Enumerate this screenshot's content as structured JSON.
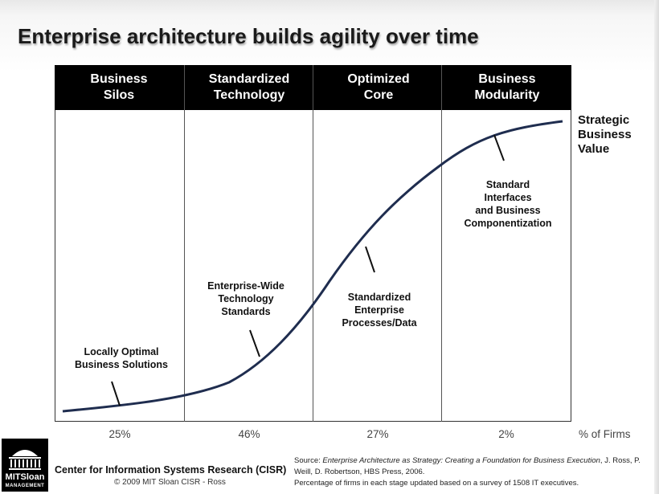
{
  "title": "Enterprise architecture builds agility over time",
  "stages": [
    {
      "label": "Business\nSilos",
      "percent": "25%"
    },
    {
      "label": "Standardized\nTechnology",
      "percent": "46%"
    },
    {
      "label": "Optimized\nCore",
      "percent": "27%"
    },
    {
      "label": "Business\nModularity",
      "percent": "2%"
    }
  ],
  "percent_axis_label": "% of Firms",
  "value_axis_label": "Strategic\nBusiness\nValue",
  "annotations": [
    {
      "text": "Locally Optimal\nBusiness Solutions"
    },
    {
      "text": "Enterprise-Wide\nTechnology\nStandards"
    },
    {
      "text": "Standardized\nEnterprise\nProcesses/Data"
    },
    {
      "text": "Standard\nInterfaces\nand Business\nComponentization"
    }
  ],
  "footer": {
    "center": "Center for Information Systems Research (CISR)",
    "copyright": "© 2009 MIT Sloan CISR - Ross",
    "source_prefix": "Source: ",
    "source_book": "Enterprise Architecture as Strategy: Creating a Foundation for Business Execution",
    "source_rest": ", J. Ross, P. Weill, D. Robertson, HBS Press, 2006.",
    "survey_note": "Percentage of firms in each stage updated based on a survey of 1508 IT executives."
  },
  "logo": {
    "line1": "MITSloan",
    "line2": "MANAGEMENT"
  },
  "colors": {
    "header_band": "#000000",
    "curve": "#1f2d4f",
    "text": "#111111"
  }
}
